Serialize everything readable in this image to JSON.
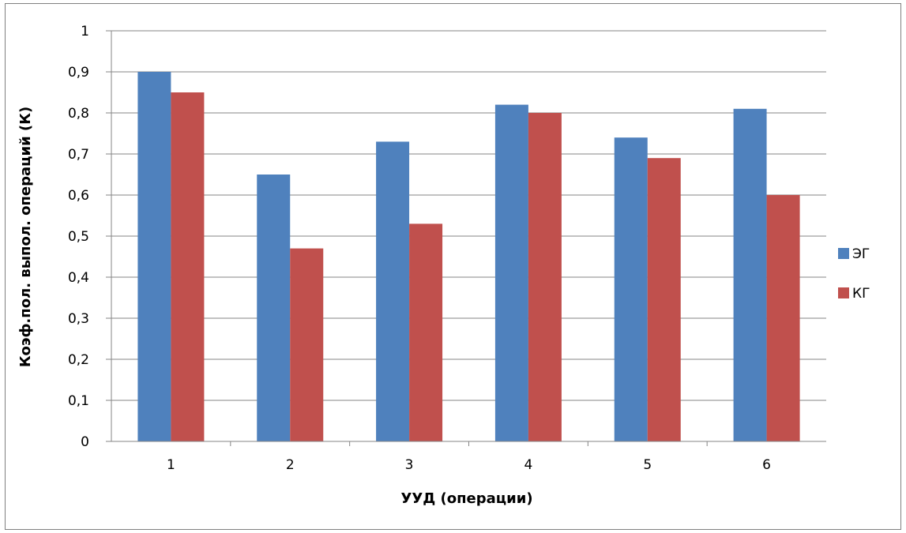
{
  "chart_data": {
    "type": "bar",
    "title": "",
    "xlabel": "УУД (операции)",
    "ylabel": "Коэф.пол. выпол. операций (К)",
    "categories": [
      "1",
      "2",
      "3",
      "4",
      "5",
      "6"
    ],
    "ylim": [
      0,
      1
    ],
    "yticks": [
      "0",
      "0,1",
      "0,2",
      "0,3",
      "0,4",
      "0,5",
      "0,6",
      "0,7",
      "0,8",
      "0,9",
      "1"
    ],
    "grid": true,
    "legend_position": "right",
    "series": [
      {
        "name": "ЭГ",
        "color": "#4F81BD",
        "values": [
          0.9,
          0.65,
          0.73,
          0.82,
          0.74,
          0.81
        ]
      },
      {
        "name": "КГ",
        "color": "#C0504D",
        "values": [
          0.85,
          0.47,
          0.53,
          0.8,
          0.69,
          0.6
        ]
      }
    ]
  }
}
